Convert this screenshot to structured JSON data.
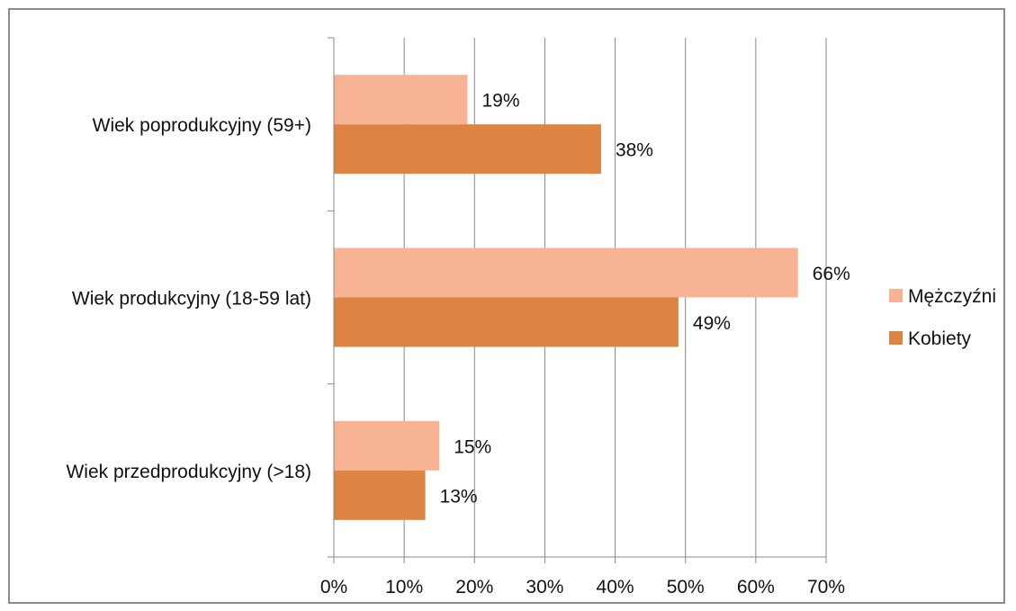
{
  "chart_data": {
    "type": "bar",
    "orientation": "horizontal",
    "categories": [
      "Wiek poprodukcyjny (59+)",
      "Wiek produkcyjny (18-59 lat)",
      "Wiek przedprodukcyjny (>18)"
    ],
    "series": [
      {
        "name": "Mężczyźni",
        "color": "#f7b394",
        "values": [
          19,
          66,
          15
        ],
        "labels": [
          "19%",
          "66%",
          "15%"
        ]
      },
      {
        "name": "Kobiety",
        "color": "#dd8442",
        "values": [
          38,
          49,
          13
        ],
        "labels": [
          "38%",
          "49%",
          "13%"
        ]
      }
    ],
    "xlim": [
      0,
      70
    ],
    "xticks": [
      0,
      10,
      20,
      30,
      40,
      50,
      60,
      70
    ],
    "xtick_labels": [
      "0%",
      "10%",
      "20%",
      "30%",
      "40%",
      "50%",
      "60%",
      "70%"
    ],
    "grid": "vertical",
    "legend_position": "right"
  }
}
